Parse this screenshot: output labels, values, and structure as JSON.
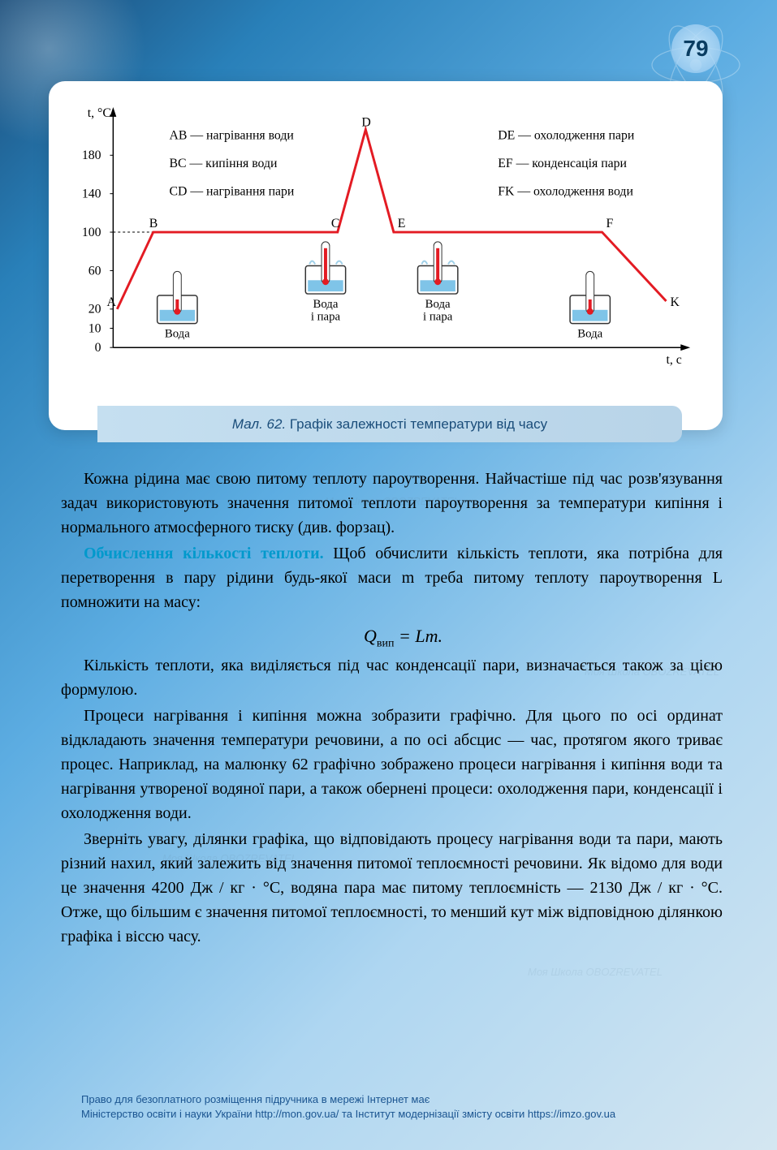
{
  "page_number": "79",
  "chart": {
    "type": "line",
    "y_axis_label": "t, °C",
    "x_axis_label": "t, с",
    "y_ticks": [
      "0",
      "10",
      "20",
      "60",
      "100",
      "140",
      "180"
    ],
    "y_tick_values": [
      0,
      10,
      20,
      60,
      100,
      140,
      180
    ],
    "ylim": [
      0,
      210
    ],
    "line_color": "#e31b23",
    "line_width": 3,
    "axis_color": "#000",
    "points": {
      "A": "A",
      "B": "B",
      "C": "C",
      "D": "D",
      "E": "E",
      "F": "F",
      "K": "K"
    },
    "legend_left": [
      "AB — нагрівання води",
      "BC — кипіння води",
      "CD — нагрівання пари"
    ],
    "legend_right": [
      "DE — охолодження пари",
      "EF — конденсація пари",
      "FK — охолодження води"
    ],
    "beaker_labels": [
      "Вода",
      "Вода\nі пара",
      "Вода\nі пара",
      "Вода"
    ],
    "caption_prefix": "Мал. 62.",
    "caption_text": " Графік залежності температури від часу"
  },
  "body": {
    "p1": "Кожна рідина має свою питому теплоту пароутворення. Найчастіше під час розв'язування задач використовують значення питомої теплоти пароутворення за температури кипіння і нормального атмосферного тиску (див. форзац).",
    "heading": "Обчислення кількості теплоти.",
    "p2": " Щоб обчислити кількість теплоти, яка потрібна для перетворення в пару рідини будь-якої маси m треба питому теплоту пароутворення L помножити на масу:",
    "formula_q": "Q",
    "formula_sub": "вип",
    "formula_rest": " = Lm.",
    "p3": "Кількість теплоти, яка виділяється під час конденсації пари, визначається також за цією формулою.",
    "p4": "Процеси нагрівання і кипіння можна зобразити графічно. Для цього по осі ординат відкладають значення температури речовини, а по осі абсцис — час, протягом якого триває процес. Наприклад, на малюнку 62 графічно зображено процеси нагрівання і кипіння води та нагрівання утвореної водяної пари, а також обернені процеси: охолодження пари, конденсації і охолодження води.",
    "p5": "Зверніть увагу, ділянки графіка, що відповідають процесу нагрівання води та пари, мають різний нахил, який залежить від значення питомої теплоємності речовини. Як відомо для води це значення 4200 Дж / кг · °С, водяна пара має питому теплоємність — 2130 Дж / кг · °С. Отже, що більшим є значення питомої теплоємності, то менший кут між відповідною ділянкою графіка і віссю часу."
  },
  "watermark": "Моя Школа OBOZREVATEL",
  "footer": {
    "line1": "Право для безоплатного розміщення підручника в мережі Інтернет має",
    "line2_pre": "Міністерство освіти і науки України ",
    "line2_url1": "http://mon.gov.ua/",
    "line2_mid": " та Інститут модернізації змісту освіти ",
    "line2_url2": "https://imzo.gov.ua"
  }
}
